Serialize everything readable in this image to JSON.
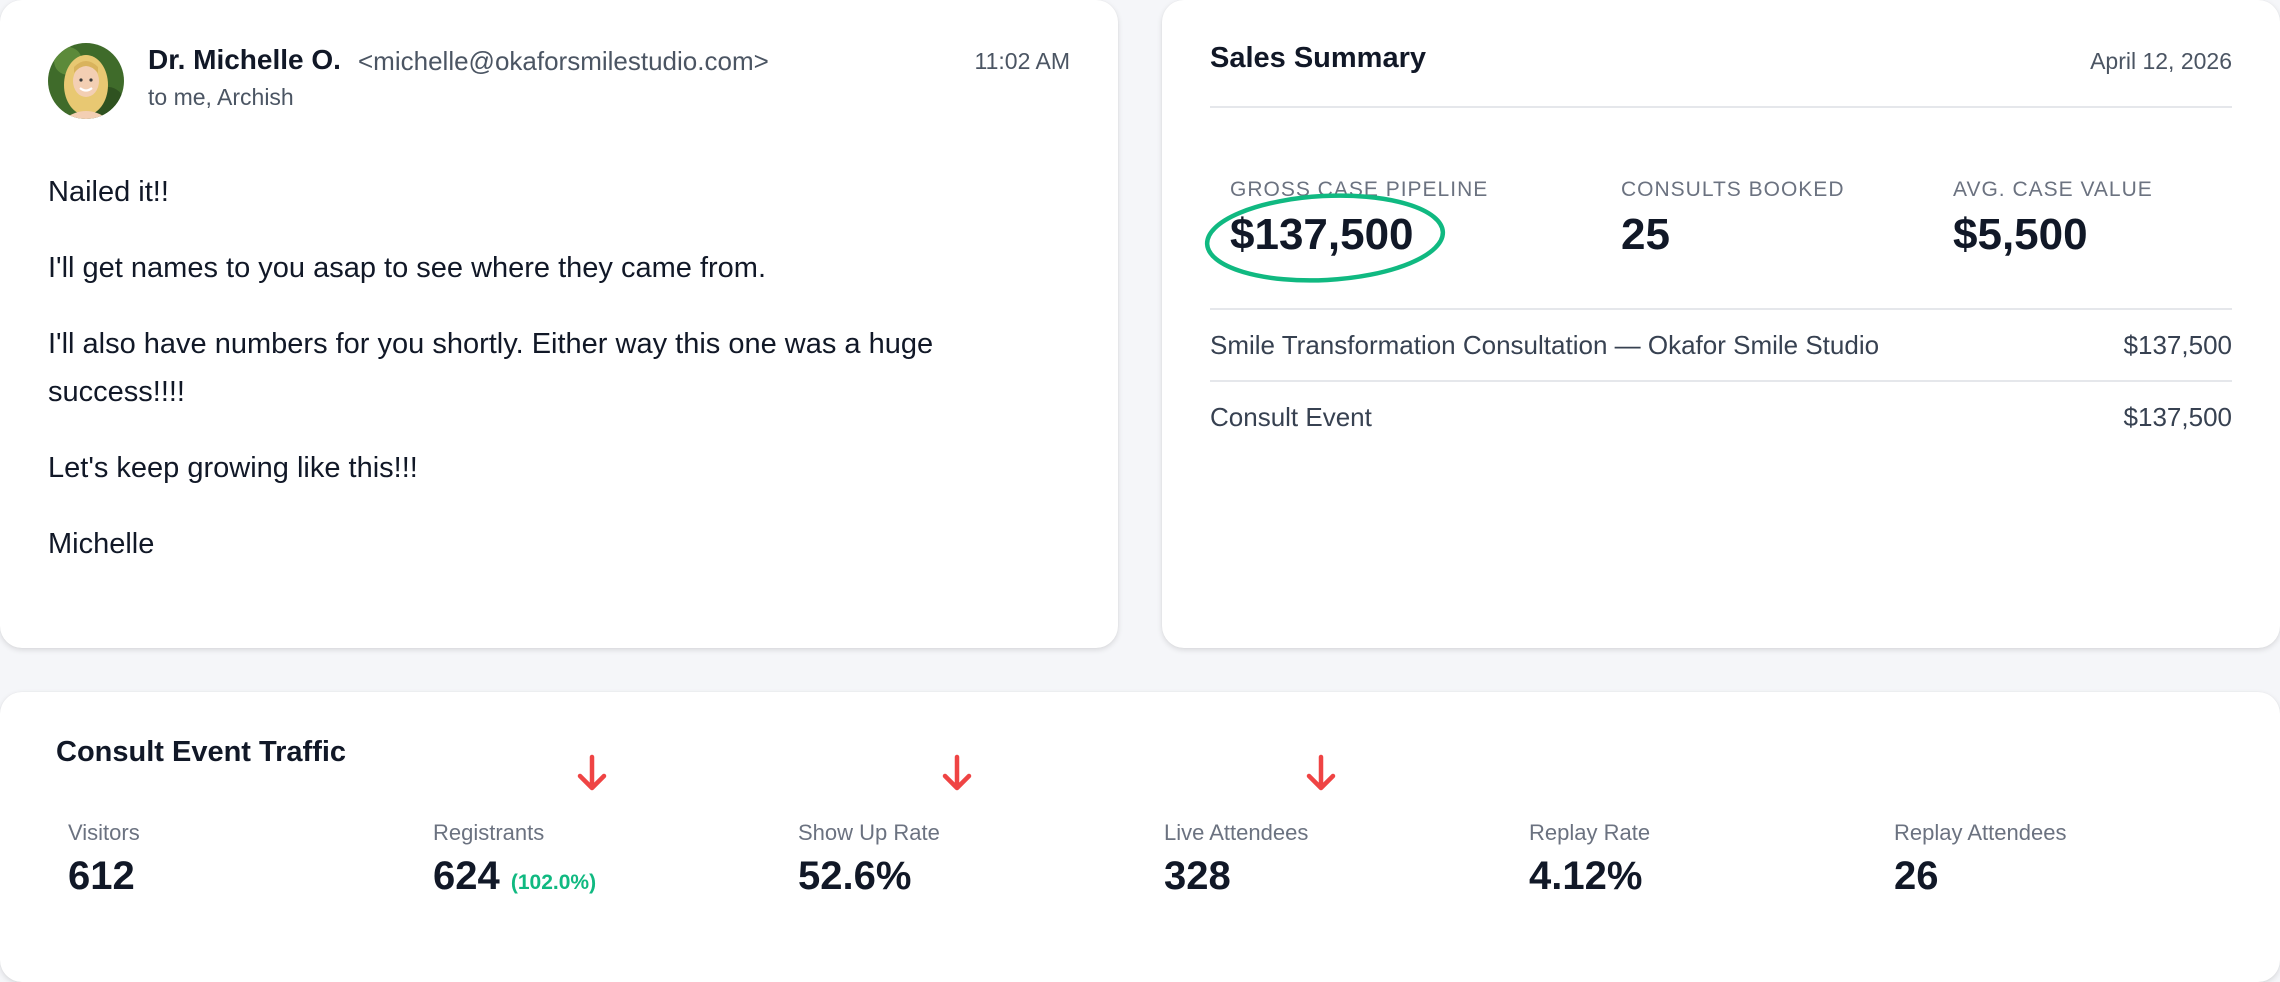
{
  "email": {
    "sender_name": "Dr. Michelle O.",
    "sender_email": "<michelle@okaforsmilestudio.com>",
    "recipients": "to me, Archish",
    "time": "11:02 AM",
    "body": [
      "Nailed it!!",
      "I'll get names to you asap to see where they came from.",
      "I'll also have numbers for you shortly. Either way this one was a huge success!!!!",
      "Let's keep growing like this!!!",
      "Michelle"
    ]
  },
  "sales": {
    "title": "Sales Summary",
    "date": "April 12, 2026",
    "metrics": [
      {
        "label": "GROSS CASE PIPELINE",
        "value": "$137,500"
      },
      {
        "label": "CONSULTS BOOKED",
        "value": "25"
      },
      {
        "label": "AVG. CASE VALUE",
        "value": "$5,500"
      }
    ],
    "line_items": [
      {
        "name": "Smile Transformation Consultation — Okafor Smile Studio",
        "amount": "$137,500"
      },
      {
        "name": "Consult Event",
        "amount": "$137,500"
      }
    ],
    "highlight_color": "#10b981"
  },
  "traffic": {
    "title": "Consult Event Traffic",
    "metrics": [
      {
        "label": "Visitors",
        "value": "612",
        "sub": ""
      },
      {
        "label": "Registrants",
        "value": "624",
        "sub": "(102.0%)"
      },
      {
        "label": "Show Up Rate",
        "value": "52.6%",
        "sub": ""
      },
      {
        "label": "Live Attendees",
        "value": "328",
        "sub": ""
      },
      {
        "label": "Replay Rate",
        "value": "4.12%",
        "sub": ""
      },
      {
        "label": "Replay Attendees",
        "value": "26",
        "sub": ""
      }
    ],
    "arrow_color": "#ef4444",
    "arrow_icon": "arrow-down-icon"
  }
}
